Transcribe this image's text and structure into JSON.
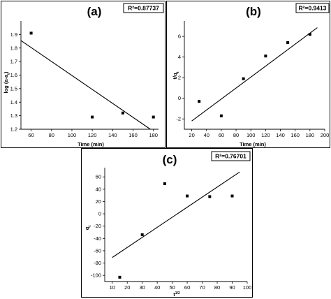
{
  "chart_data": [
    {
      "type": "scatter",
      "panel_label": "(a)",
      "r2_label": "R²=0.87737",
      "xlabel": "Time (min)",
      "ylabel": "log (a-a<sub>t</sub>)",
      "ylabel_main": "log (a-a",
      "ylabel_sub": "t",
      "ylabel_tail": ")",
      "xlim": [
        50,
        185
      ],
      "ylim": [
        1.2,
        2.0
      ],
      "xticks": [
        60,
        80,
        100,
        120,
        140,
        160,
        180
      ],
      "yticks": [
        1.2,
        1.3,
        1.4,
        1.5,
        1.6,
        1.7,
        1.8,
        1.9
      ],
      "ytick_labels": [
        "1.2",
        "1.3",
        "1.4",
        "1.5",
        "1.6",
        "1.7",
        "1.8",
        "1.9"
      ],
      "points": [
        [
          60,
          1.91
        ],
        [
          120,
          1.29
        ],
        [
          150,
          1.32
        ],
        [
          180,
          1.29
        ]
      ],
      "fit_line": [
        [
          50,
          1.855
        ],
        [
          177,
          1.2
        ]
      ]
    },
    {
      "type": "scatter",
      "panel_label": "(b)",
      "r2_label": "R²=0.9413",
      "xlabel": "Time (min)",
      "ylabel_main": "t/q",
      "ylabel_sub": "t",
      "ylabel_tail": "",
      "xlim": [
        10,
        200
      ],
      "ylim": [
        -3,
        7.5
      ],
      "xticks": [
        20,
        40,
        60,
        80,
        100,
        120,
        140,
        160,
        180,
        200
      ],
      "yticks": [
        -2,
        0,
        2,
        4,
        6
      ],
      "ytick_labels": [
        "-2",
        "0",
        "2",
        "4",
        "6"
      ],
      "points": [
        [
          30,
          -0.3
        ],
        [
          60,
          -1.7
        ],
        [
          90,
          1.9
        ],
        [
          120,
          4.1
        ],
        [
          150,
          5.4
        ],
        [
          180,
          6.2
        ]
      ],
      "fit_line": [
        [
          20,
          -2.2
        ],
        [
          190,
          6.85
        ]
      ]
    },
    {
      "type": "scatter",
      "panel_label": "(c)",
      "r2_label": "R²=0.76701",
      "xlabel_main": "t",
      "xlabel_sup": "1/2",
      "ylabel_main": "q",
      "ylabel_sub": "t",
      "ylabel_tail": "",
      "xlim": [
        5,
        100
      ],
      "ylim": [
        -110,
        75
      ],
      "xticks": [
        10,
        20,
        30,
        40,
        50,
        60,
        70,
        80,
        90,
        100
      ],
      "yticks": [
        -100,
        -80,
        -60,
        -40,
        -20,
        0,
        20,
        40,
        60
      ],
      "ytick_labels": [
        "-100",
        "-80",
        "-60",
        "-40",
        "-20",
        "0",
        "20",
        "40",
        "60"
      ],
      "points": [
        [
          15,
          -103
        ],
        [
          30,
          -34
        ],
        [
          45,
          49
        ],
        [
          60,
          29
        ],
        [
          75,
          28
        ],
        [
          90,
          29
        ]
      ],
      "fit_line": [
        [
          10,
          -71
        ],
        [
          95,
          68
        ]
      ]
    }
  ]
}
